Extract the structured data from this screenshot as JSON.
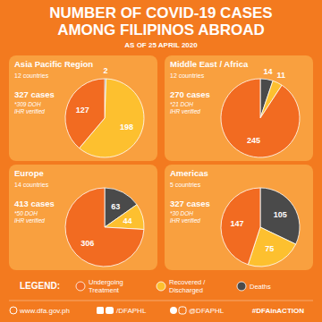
{
  "header": {
    "title": "NUMBER OF COVID-19 CASES AMONG FILIPINOS ABROAD",
    "subtitle": "AS OF 25 APRIL 2020"
  },
  "chart_data": [
    {
      "type": "pie",
      "title": "Asia Pacific Region",
      "annotations": [
        "12 countries",
        "327 cases",
        "*309 DOH",
        "IHR verified"
      ],
      "categories": [
        "Undergoing Treatment",
        "Recovered / Discharged",
        "Deaths"
      ],
      "values": [
        127,
        198,
        2
      ],
      "colors": [
        "#F26B21",
        "#FDC02F",
        "#4A4A4A"
      ],
      "data_labels": true,
      "legend": "bottom"
    },
    {
      "type": "pie",
      "title": "Middle East / Africa",
      "annotations": [
        "12 countries",
        "270 cases",
        "*21 DOH",
        "IHR verified"
      ],
      "categories": [
        "Undergoing Treatment",
        "Recovered / Discharged",
        "Deaths"
      ],
      "values": [
        245,
        11,
        14
      ],
      "colors": [
        "#F26B21",
        "#FDC02F",
        "#4A4A4A"
      ],
      "data_labels": true
    },
    {
      "type": "pie",
      "title": "Europe",
      "annotations": [
        "14 countries",
        "413 cases",
        "*50 DOH",
        "IHR verified"
      ],
      "categories": [
        "Undergoing Treatment",
        "Recovered / Discharged",
        "Deaths"
      ],
      "values": [
        306,
        44,
        63
      ],
      "colors": [
        "#F26B21",
        "#FDC02F",
        "#4A4A4A"
      ],
      "data_labels": true
    },
    {
      "type": "pie",
      "title": "Americas",
      "annotations": [
        "5 countries",
        "327 cases",
        "*30 DOH",
        "IHR verified"
      ],
      "categories": [
        "Undergoing Treatment",
        "Recovered / Discharged",
        "Deaths"
      ],
      "values": [
        147,
        75,
        105
      ],
      "colors": [
        "#F26B21",
        "#FDC02F",
        "#4A4A4A"
      ],
      "data_labels": true
    }
  ],
  "legend_title": "LEGEND:",
  "footer": {
    "website": "www.dfa.gov.ph",
    "facebook_youtube": "/DFAPHL",
    "twitter_instagram": "@DFAPHL",
    "hashtag": "#DFAinACTION"
  }
}
